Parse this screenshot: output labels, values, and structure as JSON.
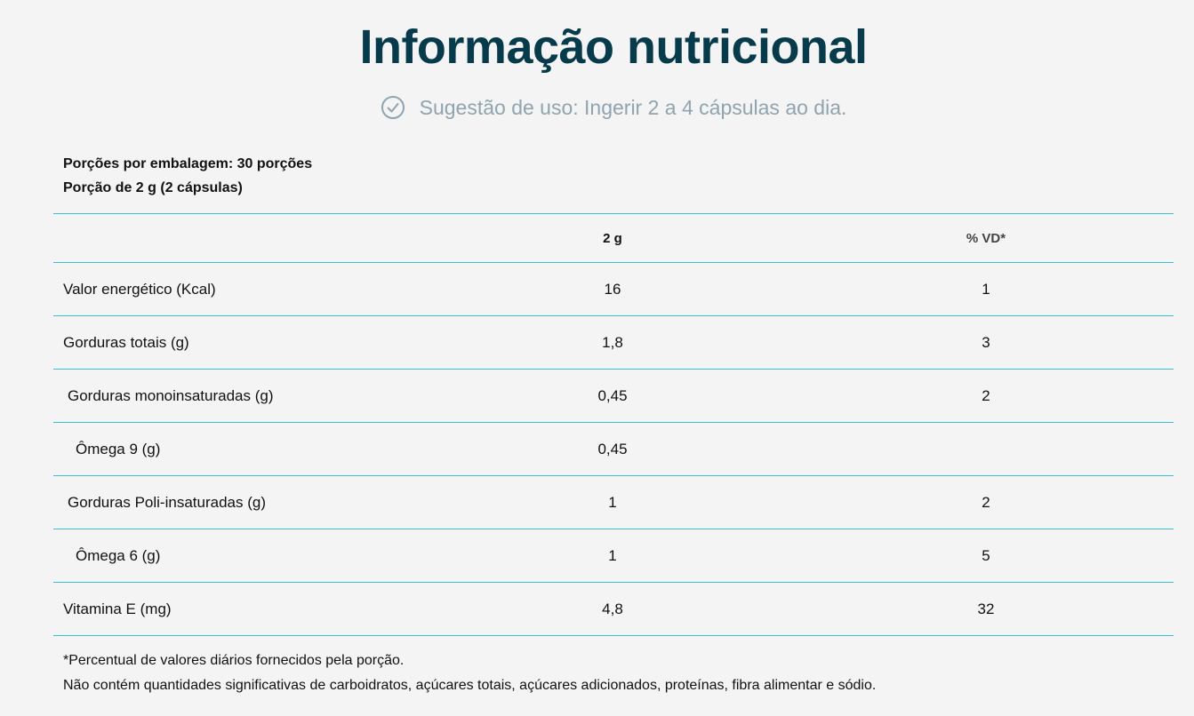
{
  "title": "Informação nutricional",
  "usage": {
    "icon": "check-circle-icon",
    "text": "Sugestão de uso: Ingerir 2 a 4 cápsulas ao dia."
  },
  "serving": {
    "per_package": "Porções por embalagem: 30 porções",
    "portion": "Porção de 2 g (2 cápsulas)"
  },
  "table": {
    "headers": [
      "",
      "2 g",
      "% VD*"
    ],
    "rows": [
      {
        "name": "Valor energético (Kcal)",
        "amount": "16",
        "vd": "1",
        "indent": 0
      },
      {
        "name": "Gorduras totais (g)",
        "amount": "1,8",
        "vd": "3",
        "indent": 0
      },
      {
        "name": "Gorduras monoinsaturadas (g)",
        "amount": "0,45",
        "vd": "2",
        "indent": 1
      },
      {
        "name": "Ômega 9 (g)",
        "amount": "0,45",
        "vd": "",
        "indent": 2
      },
      {
        "name": "Gorduras Poli-insaturadas (g)",
        "amount": "1",
        "vd": "2",
        "indent": 1
      },
      {
        "name": "Ômega 6 (g)",
        "amount": "1",
        "vd": "5",
        "indent": 2
      },
      {
        "name": "Vitamina E (mg)",
        "amount": "4,8",
        "vd": "32",
        "indent": 0
      }
    ]
  },
  "footnotes": [
    "*Percentual de valores diários fornecidos pela porção.",
    "Não contém quantidades significativas de carboidratos, açúcares totais, açúcares adicionados, proteínas, fibra alimentar e sódio."
  ],
  "colors": {
    "title": "#073a4a",
    "usage_text": "#8fa4b0",
    "row_border": "#3bbfd6",
    "background": "#f4f4f4"
  }
}
